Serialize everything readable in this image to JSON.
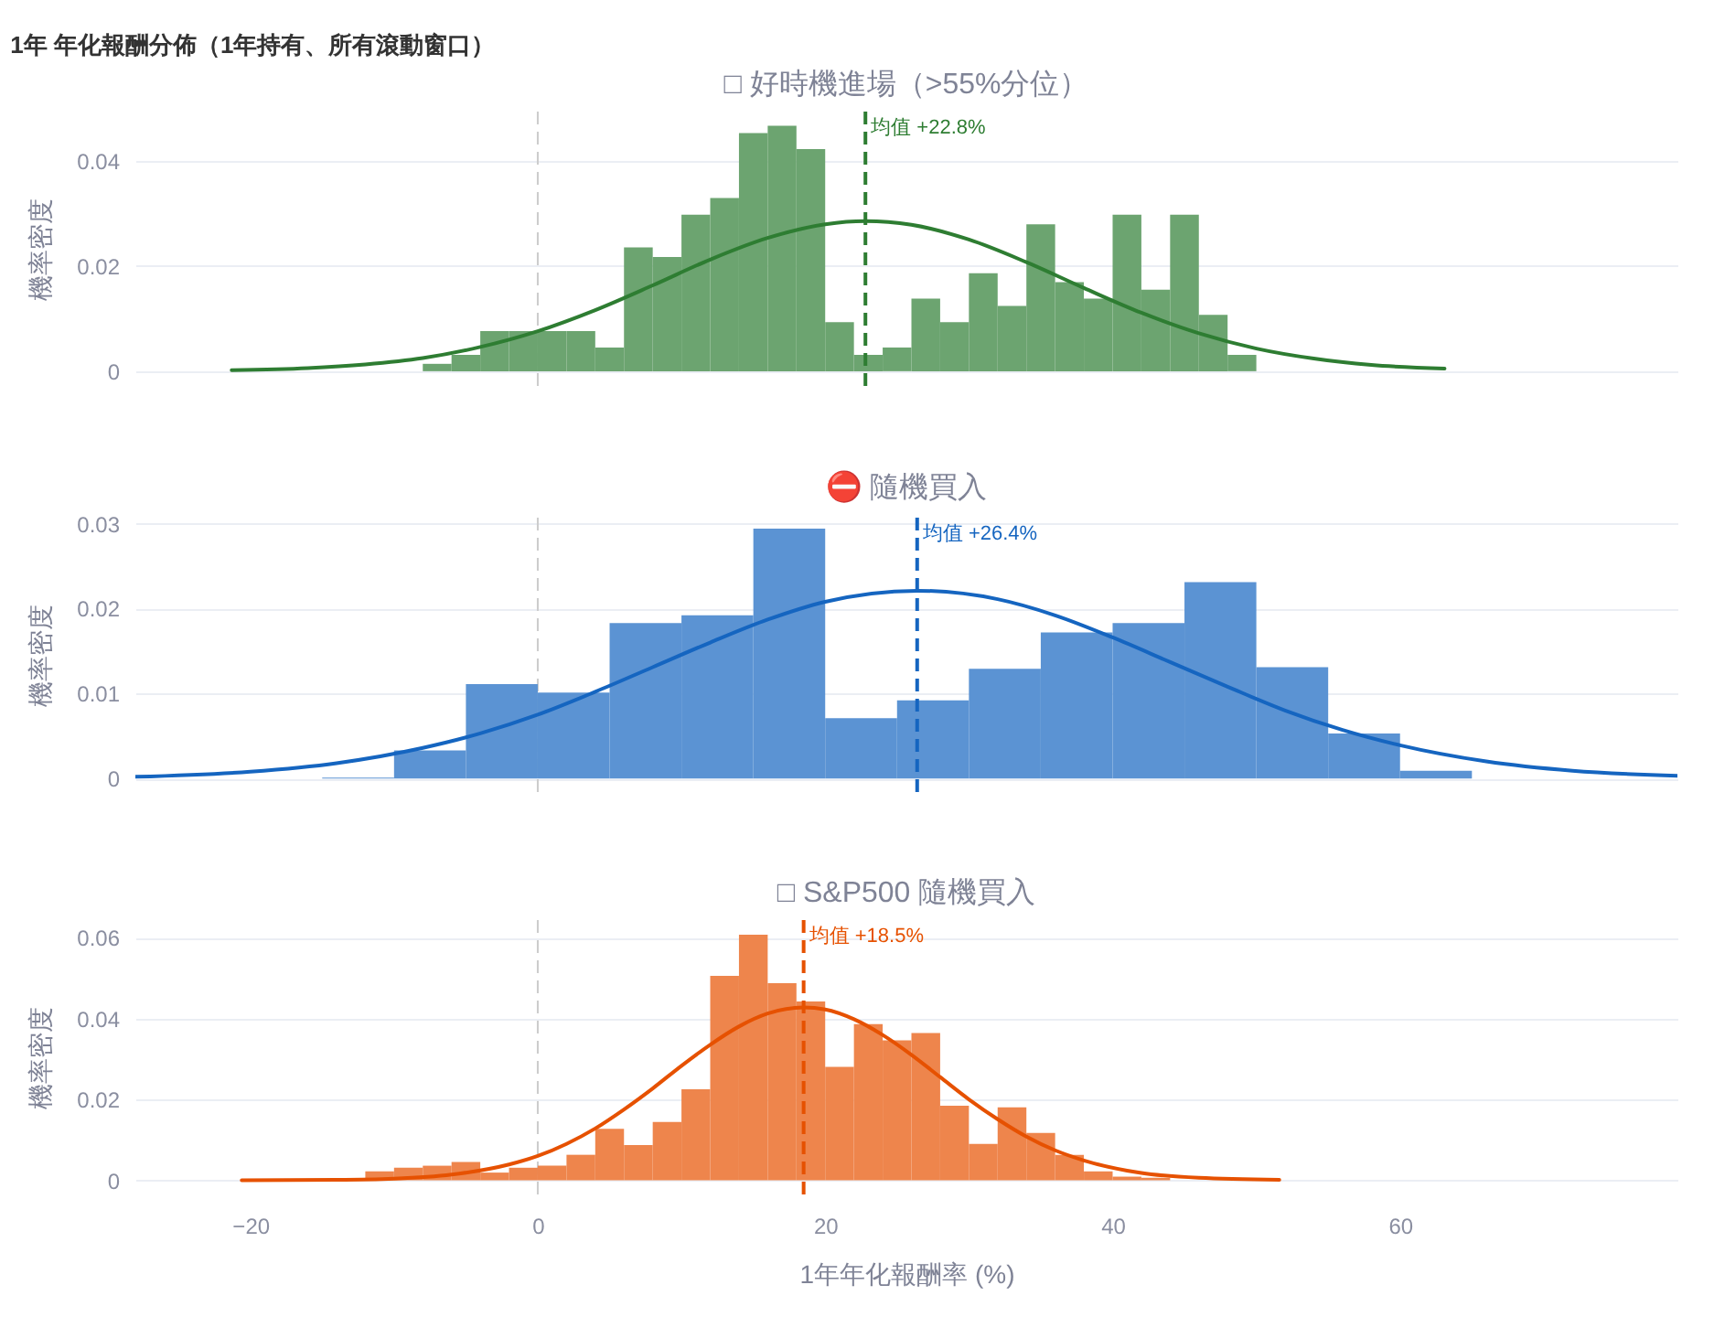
{
  "chart_data": [
    {
      "type": "histogram",
      "title": "1年 年化報酬分佈（1年持有、所有滾動窗口）",
      "subtitle": "□ 好時機進場（>55%分位）",
      "ylabel": "機率密度",
      "bins": [
        -8,
        -6,
        -4,
        -2,
        0,
        2,
        4,
        6,
        8,
        10,
        12,
        14,
        16,
        18,
        20,
        22,
        24,
        26,
        28,
        30,
        32,
        34,
        36,
        38,
        40,
        42,
        44,
        46,
        48,
        50
      ],
      "series": [
        {
          "type": "histogram",
          "color": "#6ca470",
          "values": [
            0.0014,
            0.0031,
            0.0076,
            0.0076,
            0.0076,
            0.0076,
            0.0045,
            0.0235,
            0.0217,
            0.0297,
            0.0329,
            0.0452,
            0.0466,
            0.0422,
            0.0093,
            0.0031,
            0.0045,
            0.0138,
            0.0093,
            0.0186,
            0.0124,
            0.0279,
            0.0169,
            0.0138,
            0.0297,
            0.0155,
            0.0297,
            0.0107,
            0.0031
          ]
        },
        {
          "type": "line",
          "color": "#2e7d32",
          "x": [
            -21.3,
            -16,
            -12,
            -8,
            -4,
            0,
            4,
            8,
            12,
            16,
            20,
            22.8,
            26,
            30,
            34,
            38,
            42,
            46,
            50,
            54,
            58,
            63.1
          ],
          "values": [
            0.0002,
            0.0006,
            0.0013,
            0.0025,
            0.0046,
            0.0076,
            0.0116,
            0.0163,
            0.0212,
            0.0253,
            0.0279,
            0.0285,
            0.0278,
            0.025,
            0.0207,
            0.0158,
            0.0111,
            0.0072,
            0.0043,
            0.0024,
            0.0012,
            0.0005
          ]
        }
      ],
      "xlim": [
        -28,
        79.3
      ],
      "ylim": [
        -0.0028,
        0.0493
      ],
      "yticks": [
        0,
        0.02,
        0.04
      ],
      "grid": "y",
      "tick_labels": "y",
      "ref_lines": [
        {
          "axis": "x",
          "value": 0,
          "color": "#cccccc",
          "line_style": "dashed"
        },
        {
          "axis": "x",
          "value": 22.8,
          "label": "均值 +22.8%",
          "color": "#2e7d32",
          "line_style": "dashed"
        }
      ]
    },
    {
      "type": "histogram",
      "title": "⛔ 隨機買入",
      "ylabel": "機率密度",
      "bins": [
        -15,
        -10,
        -5,
        0,
        5,
        10,
        15,
        20,
        25,
        30,
        35,
        40,
        45,
        50,
        55,
        60,
        65
      ],
      "series": [
        {
          "type": "histogram",
          "color": "#5b93d3",
          "values": [
            0.0001,
            0.0033,
            0.0111,
            0.0101,
            0.0183,
            0.0192,
            0.0294,
            0.0071,
            0.0092,
            0.0129,
            0.0172,
            0.0183,
            0.0231,
            0.0131,
            0.0053,
            0.0009
          ]
        },
        {
          "type": "line",
          "color": "#1565c0",
          "x": [
            -28,
            -20,
            -14,
            -8,
            -4,
            0,
            4,
            8,
            12,
            16,
            20,
            26.4,
            32,
            36,
            40,
            44,
            48,
            52,
            56,
            60,
            66,
            72,
            79.3
          ],
          "values": [
            0.0002,
            0.0008,
            0.0018,
            0.0036,
            0.0053,
            0.0075,
            0.0102,
            0.0131,
            0.016,
            0.0187,
            0.0208,
            0.0221,
            0.0211,
            0.0192,
            0.0166,
            0.0137,
            0.0108,
            0.008,
            0.0057,
            0.0039,
            0.002,
            0.0009,
            0.0003
          ]
        }
      ],
      "xlim": [
        -28,
        79.3
      ],
      "ylim": [
        -0.0016,
        0.0307
      ],
      "yticks": [
        0,
        0.01,
        0.02,
        0.03
      ],
      "grid": "y",
      "tick_labels": "y",
      "ref_lines": [
        {
          "axis": "x",
          "value": 0,
          "color": "#cccccc",
          "line_style": "dashed"
        },
        {
          "axis": "x",
          "value": 26.4,
          "label": "均值 +26.4%",
          "color": "#1565c0",
          "line_style": "dashed"
        }
      ]
    },
    {
      "type": "histogram",
      "title": "□ S&P500 隨機買入",
      "xlabel": "1年年化報酬率 (%)",
      "ylabel": "機率密度",
      "bins": [
        -12,
        -10,
        -8,
        -6,
        -4,
        -2,
        0,
        2,
        4,
        6,
        8,
        10,
        12,
        14,
        16,
        18,
        20,
        22,
        24,
        26,
        28,
        30,
        32,
        34,
        36,
        38,
        40,
        42,
        44
      ],
      "series": [
        {
          "type": "histogram",
          "color": "#ee854c",
          "values": [
            0.0022,
            0.0031,
            0.0036,
            0.0045,
            0.0019,
            0.0031,
            0.0036,
            0.0063,
            0.0127,
            0.0087,
            0.0144,
            0.0225,
            0.0505,
            0.0607,
            0.0487,
            0.0442,
            0.028,
            0.0386,
            0.0346,
            0.0364,
            0.0184,
            0.009,
            0.018,
            0.0117,
            0.0063,
            0.0022,
            0.0009,
            0.0006
          ]
        },
        {
          "type": "line",
          "color": "#e65100",
          "x": [
            -20.6,
            -14,
            -10,
            -6,
            -2,
            0,
            2,
            4,
            6,
            8,
            10,
            12,
            14,
            16,
            18.5,
            20,
            22,
            24,
            26,
            28,
            30,
            32,
            34,
            36,
            38,
            42,
            46,
            51.6
          ],
          "values": [
            0,
            0.0001,
            0.0004,
            0.0014,
            0.0039,
            0.006,
            0.009,
            0.0128,
            0.0175,
            0.0227,
            0.0283,
            0.0335,
            0.038,
            0.0412,
            0.0427,
            0.0422,
            0.0398,
            0.0359,
            0.031,
            0.0255,
            0.02,
            0.0151,
            0.0108,
            0.0074,
            0.0049,
            0.0018,
            0.0006,
            0.0001
          ]
        }
      ],
      "xlim": [
        -28,
        79.3
      ],
      "ylim": [
        -0.0035,
        0.0643
      ],
      "xticks": [
        -20,
        0,
        20,
        40,
        60
      ],
      "yticks": [
        0,
        0.02,
        0.04,
        0.06
      ],
      "grid": "y",
      "ref_lines": [
        {
          "axis": "x",
          "value": 0,
          "color": "#cccccc",
          "line_style": "dashed"
        },
        {
          "axis": "x",
          "value": 18.5,
          "label": "均值 +18.5%",
          "color": "#e65100",
          "line_style": "dashed"
        }
      ]
    }
  ]
}
